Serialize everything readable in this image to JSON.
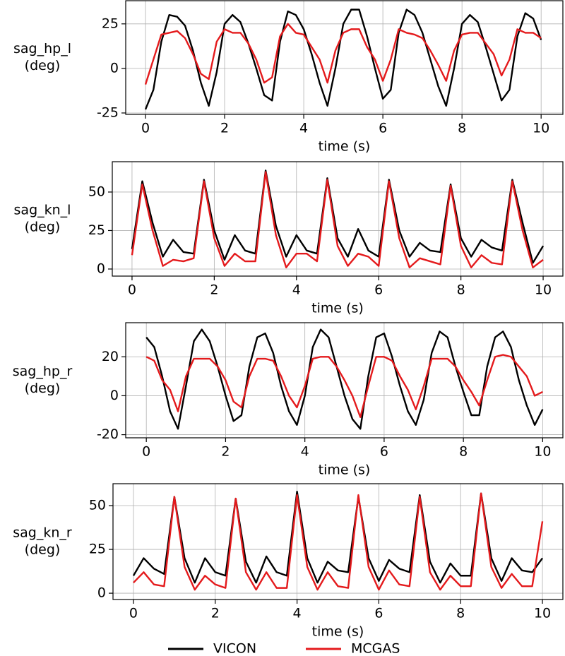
{
  "chart_data": [
    {
      "type": "line",
      "ylabel": [
        "sag_hp_l",
        "(deg)"
      ],
      "xlabel": "time (s)",
      "x": [
        0,
        0.2,
        0.4,
        0.6,
        0.8,
        1,
        1.2,
        1.4,
        1.6,
        1.8,
        2,
        2.2,
        2.4,
        2.6,
        2.8,
        3,
        3.2,
        3.4,
        3.6,
        3.8,
        4,
        4.2,
        4.4,
        4.6,
        4.8,
        5,
        5.2,
        5.4,
        5.6,
        5.8,
        6,
        6.2,
        6.4,
        6.6,
        6.8,
        7,
        7.2,
        7.4,
        7.6,
        7.8,
        8,
        8.2,
        8.4,
        8.6,
        8.8,
        9,
        9.2,
        9.4,
        9.6,
        9.8,
        10
      ],
      "series": [
        {
          "name": "VICON",
          "color": "#000000",
          "values": [
            -23,
            -12,
            15,
            30,
            29,
            24,
            10,
            -8,
            -21,
            -2,
            25,
            30,
            26,
            14,
            0,
            -15,
            -18,
            15,
            32,
            30,
            22,
            8,
            -8,
            -21,
            0,
            25,
            33,
            33,
            18,
            0,
            -17,
            -12,
            20,
            33,
            30,
            20,
            5,
            -10,
            -21,
            0,
            25,
            30,
            26,
            12,
            -3,
            -18,
            -12,
            18,
            31,
            28,
            16
          ]
        },
        {
          "name": "MCGAS",
          "color": "#e41a1c",
          "values": [
            -9,
            5,
            19,
            20,
            21,
            17,
            8,
            -3,
            -6,
            15,
            22,
            20,
            20,
            14,
            5,
            -8,
            -5,
            18,
            25,
            20,
            19,
            12,
            5,
            -8,
            10,
            20,
            22,
            22,
            12,
            5,
            -7,
            5,
            22,
            20,
            19,
            17,
            10,
            2,
            -7,
            10,
            19,
            20,
            20,
            14,
            8,
            -4,
            5,
            22,
            20,
            20,
            17
          ]
        }
      ],
      "xlim": [
        -0.5,
        10.55
      ],
      "ylim": [
        -25.8,
        38
      ],
      "xticks": [
        0,
        2,
        4,
        6,
        8,
        10
      ],
      "yticks": [
        -25,
        0,
        25
      ],
      "grid": true
    },
    {
      "type": "line",
      "ylabel": [
        "sag_kn_l",
        "(deg)"
      ],
      "xlabel": "time (s)",
      "x": [
        0,
        0.25,
        0.5,
        0.75,
        1,
        1.25,
        1.5,
        1.75,
        2,
        2.25,
        2.5,
        2.75,
        3,
        3.25,
        3.5,
        3.75,
        4,
        4.25,
        4.5,
        4.75,
        5,
        5.25,
        5.5,
        5.75,
        6,
        6.25,
        6.5,
        6.75,
        7,
        7.25,
        7.5,
        7.75,
        8,
        8.25,
        8.5,
        8.75,
        9,
        9.25,
        9.5,
        9.75,
        10
      ],
      "series": [
        {
          "color": "#000000",
          "values": [
            13,
            57,
            30,
            8,
            19,
            11,
            10,
            58,
            25,
            6,
            22,
            12,
            10,
            64,
            28,
            8,
            22,
            12,
            10,
            59,
            20,
            8,
            26,
            12,
            8,
            58,
            25,
            8,
            17,
            12,
            11,
            55,
            20,
            8,
            19,
            14,
            12,
            58,
            30,
            4,
            15
          ]
        },
        {
          "color": "#e41a1c",
          "values": [
            9,
            55,
            25,
            2,
            6,
            5,
            7,
            57,
            20,
            2,
            10,
            5,
            5,
            63,
            22,
            1,
            10,
            10,
            5,
            58,
            15,
            2,
            10,
            8,
            2,
            57,
            20,
            1,
            7,
            5,
            3,
            54,
            15,
            1,
            9,
            4,
            3,
            57,
            25,
            1,
            6
          ]
        }
      ],
      "xlim": [
        -0.48,
        10.48
      ],
      "ylim": [
        -4.6,
        69.7
      ],
      "xticks": [
        0,
        2,
        4,
        6,
        8,
        10
      ],
      "yticks": [
        0,
        25,
        50
      ],
      "grid": true
    },
    {
      "type": "line",
      "ylabel": [
        "sag_hp_r",
        "(deg)"
      ],
      "xlabel": "time (s)",
      "x": [
        0,
        0.2,
        0.4,
        0.6,
        0.8,
        1,
        1.2,
        1.4,
        1.6,
        1.8,
        2,
        2.2,
        2.4,
        2.6,
        2.8,
        3,
        3.2,
        3.4,
        3.6,
        3.8,
        4,
        4.2,
        4.4,
        4.6,
        4.8,
        5,
        5.2,
        5.4,
        5.6,
        5.8,
        6,
        6.2,
        6.4,
        6.6,
        6.8,
        7,
        7.2,
        7.4,
        7.6,
        7.8,
        8,
        8.2,
        8.4,
        8.6,
        8.8,
        9,
        9.2,
        9.4,
        9.6,
        9.8,
        10
      ],
      "series": [
        {
          "color": "#000000",
          "values": [
            30,
            25,
            10,
            -8,
            -17,
            5,
            28,
            34,
            28,
            15,
            0,
            -13,
            -10,
            15,
            30,
            32,
            22,
            5,
            -8,
            -15,
            0,
            25,
            34,
            30,
            15,
            0,
            -12,
            -17,
            10,
            30,
            32,
            20,
            5,
            -8,
            -15,
            -2,
            22,
            33,
            30,
            15,
            2,
            -10,
            -10,
            15,
            30,
            33,
            25,
            8,
            -5,
            -15,
            -7
          ]
        },
        {
          "color": "#e41a1c",
          "values": [
            20,
            18,
            8,
            3,
            -8,
            10,
            19,
            19,
            19,
            15,
            8,
            -3,
            -6,
            10,
            19,
            19,
            18,
            10,
            0,
            -6,
            5,
            19,
            20,
            20,
            15,
            8,
            0,
            -11,
            5,
            20,
            20,
            18,
            10,
            3,
            -7,
            5,
            19,
            19,
            19,
            15,
            8,
            2,
            -5,
            8,
            20,
            21,
            20,
            15,
            10,
            0,
            2
          ]
        }
      ],
      "xlim": [
        -0.52,
        10.51
      ],
      "ylim": [
        -21.6,
        37.5
      ],
      "xticks": [
        0,
        2,
        4,
        6,
        8,
        10
      ],
      "yticks": [
        -20,
        0,
        20
      ],
      "grid": true
    },
    {
      "type": "line",
      "ylabel": [
        "sag_kn_r",
        "(deg)"
      ],
      "xlabel": "time (s)",
      "x": [
        0,
        0.25,
        0.5,
        0.75,
        1,
        1.25,
        1.5,
        1.75,
        2,
        2.25,
        2.5,
        2.75,
        3,
        3.25,
        3.5,
        3.75,
        4,
        4.25,
        4.5,
        4.75,
        5,
        5.25,
        5.5,
        5.75,
        6,
        6.25,
        6.5,
        6.75,
        7,
        7.25,
        7.5,
        7.75,
        8,
        8.25,
        8.5,
        8.75,
        9,
        9.25,
        9.5,
        9.75,
        10
      ],
      "series": [
        {
          "color": "#000000",
          "values": [
            10,
            20,
            14,
            11,
            55,
            20,
            6,
            20,
            12,
            10,
            54,
            18,
            6,
            21,
            12,
            10,
            58,
            20,
            6,
            18,
            13,
            12,
            55,
            20,
            7,
            19,
            14,
            12,
            56,
            18,
            6,
            17,
            10,
            10,
            57,
            20,
            7,
            20,
            13,
            12,
            20
          ]
        },
        {
          "color": "#e41a1c",
          "values": [
            6,
            12,
            5,
            4,
            55,
            15,
            2,
            10,
            5,
            3,
            54,
            12,
            2,
            12,
            3,
            3,
            56,
            15,
            2,
            12,
            4,
            3,
            56,
            15,
            2,
            13,
            5,
            4,
            55,
            12,
            2,
            10,
            4,
            4,
            57,
            15,
            3,
            11,
            4,
            4,
            41
          ]
        }
      ],
      "xlim": [
        -0.5,
        10.5
      ],
      "ylim": [
        -3.6,
        62.5
      ],
      "xticks": [
        0,
        2,
        4,
        6,
        8,
        10
      ],
      "yticks": [
        0,
        25,
        50
      ],
      "grid": true
    }
  ]
}
